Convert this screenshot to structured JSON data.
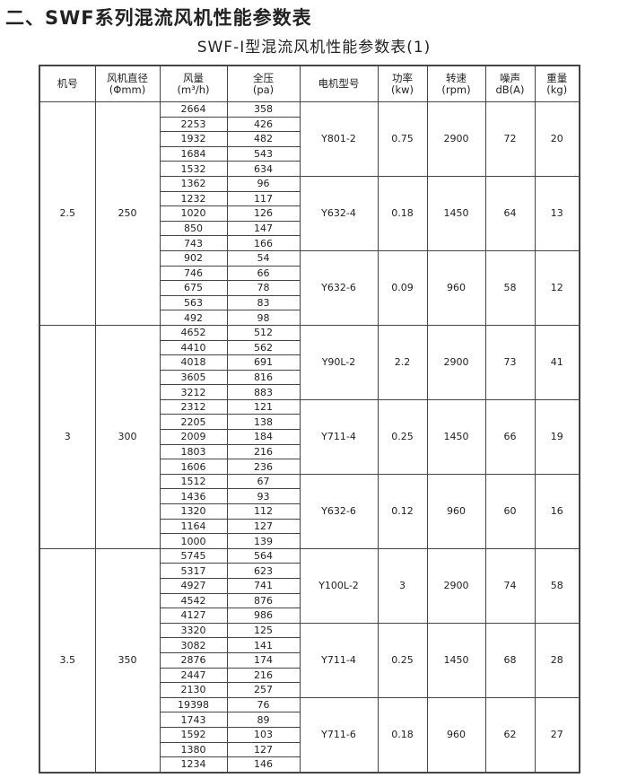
{
  "title": "二、SWF系列混流风机性能参数表",
  "subtitle": "SWF-I型混流风机性能参数表(1)",
  "table": {
    "headers": [
      {
        "label": "机号",
        "unit": ""
      },
      {
        "label": "风机直径",
        "unit": "(Φmm)"
      },
      {
        "label": "风量",
        "unit": "(m³/h)"
      },
      {
        "label": "全压",
        "unit": "(pa)"
      },
      {
        "label": "电机型号",
        "unit": ""
      },
      {
        "label": "功率",
        "unit": "(kw)"
      },
      {
        "label": "转速",
        "unit": "(rpm)"
      },
      {
        "label": "噪声",
        "unit": "dB(A)"
      },
      {
        "label": "重量",
        "unit": "(kg)"
      }
    ],
    "groups": [
      {
        "no": "2.5",
        "diameter": "250",
        "motors": [
          {
            "model": "Y801-2",
            "power": "0.75",
            "rpm": "2900",
            "noise": "72",
            "weight": "20",
            "rows": [
              [
                "2664",
                "358"
              ],
              [
                "2253",
                "426"
              ],
              [
                "1932",
                "482"
              ],
              [
                "1684",
                "543"
              ],
              [
                "1532",
                "634"
              ]
            ]
          },
          {
            "model": "Y632-4",
            "power": "0.18",
            "rpm": "1450",
            "noise": "64",
            "weight": "13",
            "rows": [
              [
                "1362",
                "96"
              ],
              [
                "1232",
                "117"
              ],
              [
                "1020",
                "126"
              ],
              [
                "850",
                "147"
              ],
              [
                "743",
                "166"
              ]
            ]
          },
          {
            "model": "Y632-6",
            "power": "0.09",
            "rpm": "960",
            "noise": "58",
            "weight": "12",
            "rows": [
              [
                "902",
                "54"
              ],
              [
                "746",
                "66"
              ],
              [
                "675",
                "78"
              ],
              [
                "563",
                "83"
              ],
              [
                "492",
                "98"
              ]
            ]
          }
        ]
      },
      {
        "no": "3",
        "diameter": "300",
        "motors": [
          {
            "model": "Y90L-2",
            "power": "2.2",
            "rpm": "2900",
            "noise": "73",
            "weight": "41",
            "rows": [
              [
                "4652",
                "512"
              ],
              [
                "4410",
                "562"
              ],
              [
                "4018",
                "691"
              ],
              [
                "3605",
                "816"
              ],
              [
                "3212",
                "883"
              ]
            ]
          },
          {
            "model": "Y711-4",
            "power": "0.25",
            "rpm": "1450",
            "noise": "66",
            "weight": "19",
            "rows": [
              [
                "2312",
                "121"
              ],
              [
                "2205",
                "138"
              ],
              [
                "2009",
                "184"
              ],
              [
                "1803",
                "216"
              ],
              [
                "1606",
                "236"
              ]
            ]
          },
          {
            "model": "Y632-6",
            "power": "0.12",
            "rpm": "960",
            "noise": "60",
            "weight": "16",
            "rows": [
              [
                "1512",
                "67"
              ],
              [
                "1436",
                "93"
              ],
              [
                "1320",
                "112"
              ],
              [
                "1164",
                "127"
              ],
              [
                "1000",
                "139"
              ]
            ]
          }
        ]
      },
      {
        "no": "3.5",
        "diameter": "350",
        "motors": [
          {
            "model": "Y100L-2",
            "power": "3",
            "rpm": "2900",
            "noise": "74",
            "weight": "58",
            "rows": [
              [
                "5745",
                "564"
              ],
              [
                "5317",
                "623"
              ],
              [
                "4927",
                "741"
              ],
              [
                "4542",
                "876"
              ],
              [
                "4127",
                "986"
              ]
            ]
          },
          {
            "model": "Y711-4",
            "power": "0.25",
            "rpm": "1450",
            "noise": "68",
            "weight": "28",
            "rows": [
              [
                "3320",
                "125"
              ],
              [
                "3082",
                "141"
              ],
              [
                "2876",
                "174"
              ],
              [
                "2447",
                "216"
              ],
              [
                "2130",
                "257"
              ]
            ]
          },
          {
            "model": "Y711-6",
            "power": "0.18",
            "rpm": "960",
            "noise": "62",
            "weight": "27",
            "rows": [
              [
                "19398",
                "76"
              ],
              [
                "1743",
                "89"
              ],
              [
                "1592",
                "103"
              ],
              [
                "1380",
                "127"
              ],
              [
                "1234",
                "146"
              ]
            ]
          }
        ]
      }
    ]
  }
}
